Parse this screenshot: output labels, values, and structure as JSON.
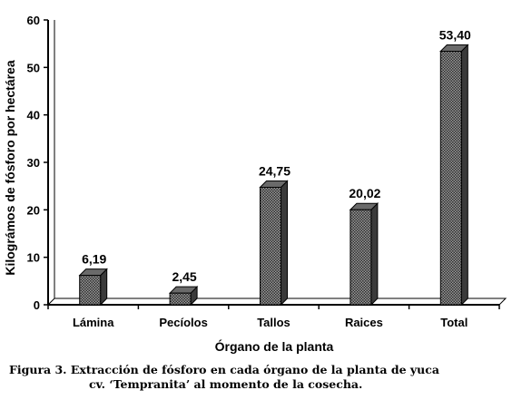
{
  "chart_data": {
    "type": "bar",
    "title": "",
    "xlabel": "Órgano de la planta",
    "ylabel": "Kilográmos de fósforo por hectárea",
    "categories": [
      "Lámina",
      "Pecíolos",
      "Tallos",
      "Raices",
      "Total"
    ],
    "values": [
      6.19,
      2.45,
      24.75,
      20.02,
      53.4
    ],
    "value_labels": [
      "6,19",
      "2,45",
      "24,75",
      "20,02",
      "53,40"
    ],
    "ylim": [
      0,
      60
    ],
    "yticks": [
      "0",
      "10",
      "20",
      "30",
      "40",
      "50",
      "60"
    ],
    "grid": false,
    "bar_style": "3d-hatched"
  },
  "caption": {
    "line1": "Figura 3. Extracción de fósforo en cada órgano de la planta de yuca",
    "line2": "cv. ‘Tempranita’ al momento de la cosecha."
  }
}
